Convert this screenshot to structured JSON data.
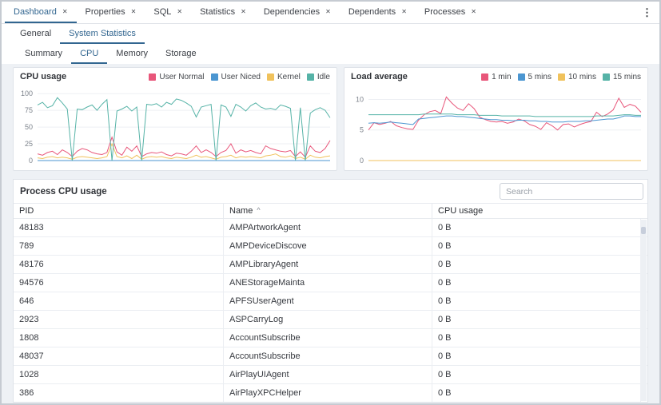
{
  "icons": {
    "close": "✕",
    "kebab": "⋮",
    "sort_asc": "^"
  },
  "colors": {
    "accent": "#326690",
    "pink": "#e8567a",
    "blue": "#4b96d1",
    "yellow": "#f0c25c",
    "teal": "#56b3a7"
  },
  "main_tabs": {
    "items": [
      {
        "label": "Dashboard",
        "active": true
      },
      {
        "label": "Properties",
        "active": false
      },
      {
        "label": "SQL",
        "active": false
      },
      {
        "label": "Statistics",
        "active": false
      },
      {
        "label": "Dependencies",
        "active": false
      },
      {
        "label": "Dependents",
        "active": false
      },
      {
        "label": "Processes",
        "active": false
      }
    ]
  },
  "dashboard_tabs": [
    {
      "label": "General",
      "active": false
    },
    {
      "label": "System Statistics",
      "active": true
    }
  ],
  "stats_tabs": [
    {
      "label": "Summary",
      "active": false
    },
    {
      "label": "CPU",
      "active": true
    },
    {
      "label": "Memory",
      "active": false
    },
    {
      "label": "Storage",
      "active": false
    }
  ],
  "chart_data": [
    {
      "type": "line",
      "title": "CPU usage",
      "xlabel": "",
      "ylabel": "",
      "ylim": [
        0,
        105
      ],
      "yticks": [
        0,
        25,
        50,
        75,
        100
      ],
      "grid": true,
      "legend_position": "top-right",
      "series": [
        {
          "name": "User Normal",
          "color": "#e8567a",
          "values": [
            10,
            8,
            12,
            14,
            9,
            16,
            12,
            6,
            14,
            18,
            16,
            12,
            10,
            9,
            12,
            35,
            13,
            8,
            20,
            14,
            22,
            6,
            10,
            12,
            11,
            13,
            9,
            7,
            11,
            10,
            8,
            14,
            22,
            12,
            16,
            12,
            6,
            12,
            15,
            25,
            11,
            16,
            13,
            15,
            12,
            10,
            22,
            18,
            16,
            14,
            13,
            15,
            6,
            13,
            5,
            22,
            14,
            12,
            18,
            30
          ]
        },
        {
          "name": "User Niced",
          "color": "#4b96d1",
          "values": [
            0,
            0,
            0,
            0,
            0,
            0,
            0,
            0,
            0,
            0,
            0,
            0,
            0,
            0,
            0,
            0,
            0,
            0,
            0,
            0,
            0,
            0,
            0,
            0,
            0,
            0,
            0,
            0,
            0,
            0,
            0,
            0,
            0,
            0,
            0,
            0,
            0,
            0,
            0,
            0,
            0,
            0,
            0,
            0,
            0,
            0,
            0,
            0,
            0,
            0,
            0,
            0,
            0,
            0,
            0,
            0,
            0,
            0,
            0,
            0
          ]
        },
        {
          "name": "Kernel",
          "color": "#f0c25c",
          "values": [
            4,
            3,
            5,
            6,
            4,
            5,
            4,
            2,
            5,
            6,
            5,
            4,
            3,
            4,
            6,
            25,
            6,
            4,
            7,
            3,
            8,
            2,
            5,
            6,
            5,
            6,
            4,
            3,
            5,
            4,
            3,
            5,
            8,
            5,
            6,
            4,
            2,
            5,
            6,
            8,
            4,
            6,
            5,
            6,
            5,
            4,
            7,
            8,
            10,
            6,
            5,
            7,
            3,
            5,
            2,
            8,
            5,
            4,
            6,
            7
          ]
        },
        {
          "name": "Idle",
          "color": "#56b3a7",
          "values": [
            83,
            87,
            79,
            82,
            94,
            86,
            77,
            0,
            77,
            76,
            80,
            83,
            75,
            84,
            91,
            0,
            74,
            77,
            81,
            74,
            80,
            0,
            84,
            83,
            85,
            80,
            87,
            84,
            92,
            90,
            86,
            81,
            65,
            80,
            82,
            84,
            0,
            83,
            80,
            66,
            84,
            80,
            74,
            82,
            86,
            80,
            77,
            78,
            76,
            83,
            81,
            78,
            0,
            79,
            0,
            71,
            76,
            79,
            75,
            64
          ]
        }
      ]
    },
    {
      "type": "line",
      "title": "Load average",
      "xlabel": "",
      "ylabel": "",
      "ylim": [
        0,
        11.5
      ],
      "yticks": [
        0,
        5,
        10
      ],
      "grid": true,
      "legend_position": "top-right",
      "series": [
        {
          "name": "1 min",
          "color": "#e8567a",
          "values": [
            5.0,
            6.2,
            5.9,
            6.1,
            6.4,
            5.7,
            5.4,
            5.2,
            5.1,
            6.6,
            7.5,
            8.0,
            8.2,
            7.7,
            10.4,
            9.4,
            8.6,
            8.2,
            9.3,
            8.5,
            7.1,
            6.7,
            6.4,
            6.3,
            6.4,
            6.1,
            6.3,
            6.8,
            6.5,
            5.9,
            5.6,
            5.1,
            6.2,
            5.7,
            5.0,
            5.9,
            6.0,
            5.5,
            5.9,
            6.2,
            6.4,
            7.9,
            7.2,
            7.6,
            8.3,
            10.2,
            8.7,
            9.2,
            8.9,
            7.9
          ]
        },
        {
          "name": "5 mins",
          "color": "#4b96d1",
          "values": [
            6.1,
            6.2,
            6.1,
            6.2,
            6.3,
            6.2,
            6.1,
            6.0,
            5.9,
            6.8,
            6.9,
            7.0,
            7.1,
            7.2,
            7.3,
            7.3,
            7.2,
            7.2,
            7.1,
            7.0,
            6.9,
            6.8,
            6.7,
            6.7,
            6.6,
            6.6,
            6.5,
            6.6,
            6.6,
            6.5,
            6.5,
            6.4,
            6.4,
            6.3,
            6.3,
            6.3,
            6.4,
            6.4,
            6.4,
            6.5,
            6.5,
            6.6,
            6.7,
            6.8,
            6.8,
            7.0,
            7.3,
            7.3,
            7.2,
            7.2
          ]
        },
        {
          "name": "10 mins",
          "color": "#f0c25c",
          "values": [
            0,
            0,
            0,
            0,
            0,
            0,
            0,
            0,
            0,
            0,
            0,
            0,
            0,
            0,
            0,
            0,
            0,
            0,
            0,
            0,
            0,
            0,
            0,
            0,
            0,
            0,
            0,
            0,
            0,
            0,
            0,
            0,
            0,
            0,
            0,
            0,
            0,
            0,
            0,
            0,
            0,
            0,
            0,
            0,
            0,
            0,
            0,
            0,
            0,
            0
          ]
        },
        {
          "name": "15 mins",
          "color": "#56b3a7",
          "values": [
            7.5,
            7.5,
            7.5,
            7.5,
            7.5,
            7.5,
            7.5,
            7.5,
            7.5,
            7.5,
            7.6,
            7.6,
            7.6,
            7.6,
            7.6,
            7.6,
            7.5,
            7.5,
            7.5,
            7.5,
            7.4,
            7.4,
            7.4,
            7.4,
            7.3,
            7.3,
            7.3,
            7.3,
            7.3,
            7.3,
            7.2,
            7.2,
            7.2,
            7.2,
            7.2,
            7.2,
            7.2,
            7.2,
            7.2,
            7.2,
            7.2,
            7.3,
            7.3,
            7.3,
            7.3,
            7.4,
            7.5,
            7.5,
            7.4,
            7.4
          ]
        }
      ]
    }
  ],
  "process_panel": {
    "title": "Process CPU usage",
    "search_placeholder": "Search",
    "columns": [
      {
        "label": "PID",
        "sorted": false
      },
      {
        "label": "Name",
        "sorted": true
      },
      {
        "label": "CPU usage",
        "sorted": false
      }
    ],
    "rows": [
      [
        "48183",
        "AMPArtworkAgent",
        "0 B"
      ],
      [
        "789",
        "AMPDeviceDiscove",
        "0 B"
      ],
      [
        "48176",
        "AMPLibraryAgent",
        "0 B"
      ],
      [
        "94576",
        "ANEStorageMainta",
        "0 B"
      ],
      [
        "646",
        "APFSUserAgent",
        "0 B"
      ],
      [
        "2923",
        "ASPCarryLog",
        "0 B"
      ],
      [
        "1808",
        "AccountSubscribe",
        "0 B"
      ],
      [
        "48037",
        "AccountSubscribe",
        "0 B"
      ],
      [
        "1028",
        "AirPlayUIAgent",
        "0 B"
      ],
      [
        "386",
        "AirPlayXPCHelper",
        "0 B"
      ]
    ]
  }
}
